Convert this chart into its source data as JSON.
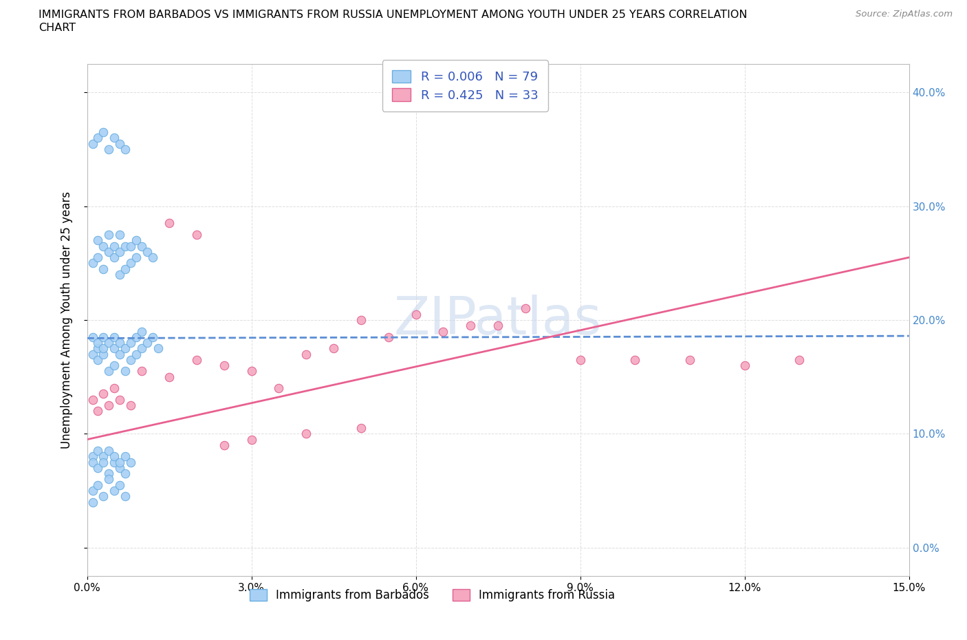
{
  "title_line1": "IMMIGRANTS FROM BARBADOS VS IMMIGRANTS FROM RUSSIA UNEMPLOYMENT AMONG YOUTH UNDER 25 YEARS CORRELATION",
  "title_line2": "CHART",
  "source": "Source: ZipAtlas.com",
  "ylabel": "Unemployment Among Youth under 25 years",
  "watermark": "ZIPatlas",
  "xlim": [
    0.0,
    0.15
  ],
  "ylim": [
    -0.025,
    0.425
  ],
  "xticks": [
    0.0,
    0.03,
    0.06,
    0.09,
    0.12,
    0.15
  ],
  "yticks": [
    0.0,
    0.1,
    0.2,
    0.3,
    0.4
  ],
  "blue_R": 0.006,
  "blue_N": 79,
  "pink_R": 0.425,
  "pink_N": 33,
  "blue_color": "#A8D0F5",
  "pink_color": "#F5A8C0",
  "blue_edge_color": "#6AAEE0",
  "pink_edge_color": "#E06090",
  "blue_line_color": "#5B8ED5",
  "pink_line_color": "#E86090",
  "legend_R_color": "#3355BB",
  "grid_color": "#DDDDDD",
  "right_tick_color": "#4488CC",
  "bottom_label_color": "#000000",
  "blue_scatter_x": [
    0.001,
    0.001,
    0.002,
    0.002,
    0.002,
    0.003,
    0.003,
    0.003,
    0.004,
    0.004,
    0.005,
    0.005,
    0.005,
    0.006,
    0.006,
    0.007,
    0.007,
    0.008,
    0.008,
    0.009,
    0.009,
    0.01,
    0.01,
    0.011,
    0.012,
    0.013,
    0.001,
    0.002,
    0.002,
    0.003,
    0.003,
    0.004,
    0.004,
    0.005,
    0.005,
    0.006,
    0.006,
    0.006,
    0.007,
    0.007,
    0.008,
    0.008,
    0.009,
    0.009,
    0.01,
    0.011,
    0.012,
    0.001,
    0.001,
    0.002,
    0.002,
    0.003,
    0.003,
    0.004,
    0.004,
    0.005,
    0.005,
    0.006,
    0.006,
    0.007,
    0.007,
    0.008,
    0.001,
    0.002,
    0.003,
    0.004,
    0.005,
    0.006,
    0.007,
    0.001,
    0.001,
    0.002,
    0.003,
    0.004,
    0.005,
    0.006,
    0.007
  ],
  "blue_scatter_y": [
    0.17,
    0.185,
    0.165,
    0.175,
    0.18,
    0.17,
    0.175,
    0.185,
    0.155,
    0.18,
    0.16,
    0.175,
    0.185,
    0.17,
    0.18,
    0.155,
    0.175,
    0.165,
    0.18,
    0.17,
    0.185,
    0.175,
    0.19,
    0.18,
    0.185,
    0.175,
    0.25,
    0.27,
    0.255,
    0.265,
    0.245,
    0.26,
    0.275,
    0.255,
    0.265,
    0.24,
    0.26,
    0.275,
    0.245,
    0.265,
    0.25,
    0.265,
    0.255,
    0.27,
    0.265,
    0.26,
    0.255,
    0.08,
    0.075,
    0.085,
    0.07,
    0.08,
    0.075,
    0.085,
    0.065,
    0.075,
    0.08,
    0.07,
    0.075,
    0.08,
    0.065,
    0.075,
    0.355,
    0.36,
    0.365,
    0.35,
    0.36,
    0.355,
    0.35,
    0.05,
    0.04,
    0.055,
    0.045,
    0.06,
    0.05,
    0.055,
    0.045
  ],
  "pink_scatter_x": [
    0.001,
    0.002,
    0.003,
    0.004,
    0.005,
    0.006,
    0.008,
    0.01,
    0.015,
    0.02,
    0.025,
    0.03,
    0.035,
    0.04,
    0.045,
    0.05,
    0.055,
    0.06,
    0.065,
    0.07,
    0.075,
    0.08,
    0.09,
    0.1,
    0.11,
    0.12,
    0.13,
    0.015,
    0.02,
    0.025,
    0.03,
    0.04,
    0.05
  ],
  "pink_scatter_y": [
    0.13,
    0.12,
    0.135,
    0.125,
    0.14,
    0.13,
    0.125,
    0.155,
    0.15,
    0.165,
    0.16,
    0.155,
    0.14,
    0.17,
    0.175,
    0.2,
    0.185,
    0.205,
    0.19,
    0.195,
    0.195,
    0.21,
    0.165,
    0.165,
    0.165,
    0.16,
    0.165,
    0.285,
    0.275,
    0.09,
    0.095,
    0.1,
    0.105
  ]
}
